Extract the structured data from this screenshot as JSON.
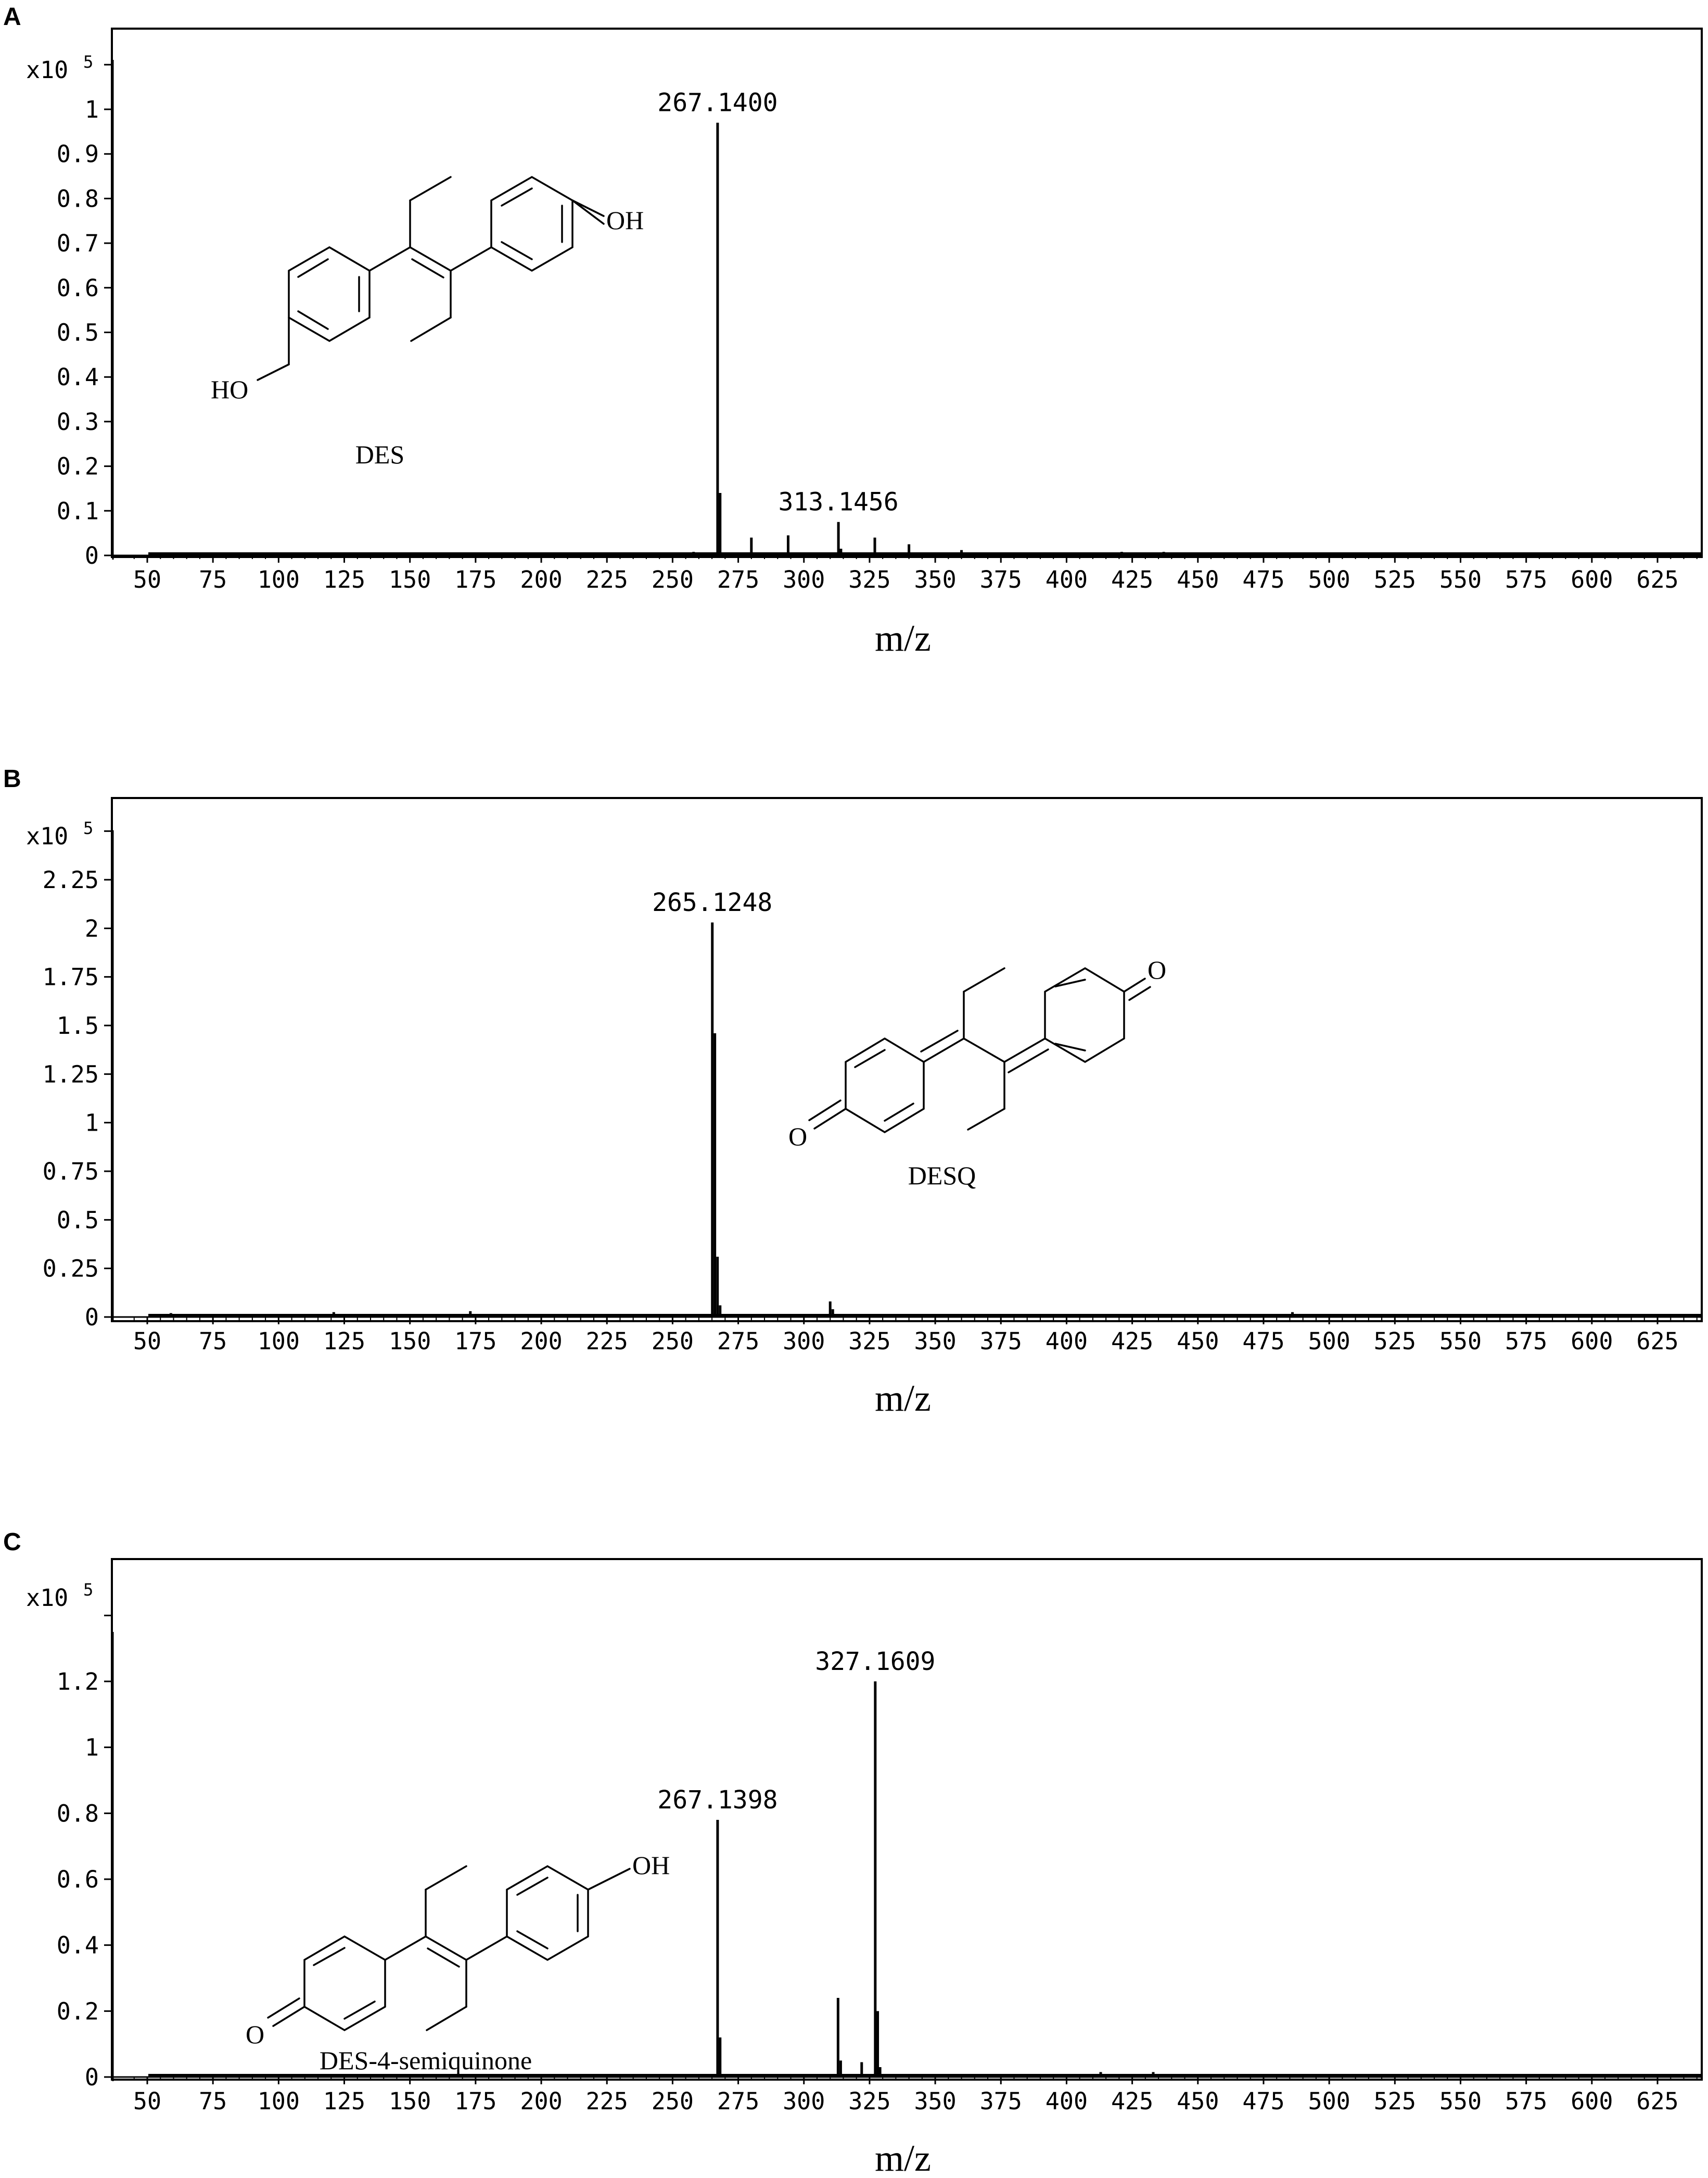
{
  "chart_data": [
    {
      "type": "bar",
      "panel": "A",
      "scale_label": "x10",
      "scale_exponent": "5",
      "xlabel": "m/z",
      "ylabel": "",
      "xlim": [
        45,
        645
      ],
      "ylim": [
        0,
        1.1
      ],
      "xticks": [
        "50",
        "75",
        "100",
        "125",
        "150",
        "175",
        "200",
        "225",
        "250",
        "275",
        "300",
        "325",
        "350",
        "375",
        "400",
        "425",
        "450",
        "475",
        "500",
        "525",
        "550",
        "575",
        "600",
        "625"
      ],
      "yticks": [
        "0",
        "0.1",
        "0.2",
        "0.3",
        "0.4",
        "0.5",
        "0.6",
        "0.7",
        "0.8",
        "0.9",
        "1"
      ],
      "peaks": [
        {
          "mz": 267.14,
          "intensity": 0.97,
          "label": "267.1400"
        },
        {
          "mz": 268.1,
          "intensity": 0.14
        },
        {
          "mz": 280.0,
          "intensity": 0.04
        },
        {
          "mz": 294.0,
          "intensity": 0.045
        },
        {
          "mz": 313.1456,
          "intensity": 0.075,
          "label": "313.1456"
        },
        {
          "mz": 314.1,
          "intensity": 0.015
        },
        {
          "mz": 327.0,
          "intensity": 0.04
        },
        {
          "mz": 340.0,
          "intensity": 0.025
        },
        {
          "mz": 360.0,
          "intensity": 0.012
        },
        {
          "mz": 258.0,
          "intensity": 0.008
        },
        {
          "mz": 244.0,
          "intensity": 0.006
        },
        {
          "mz": 421.0,
          "intensity": 0.008
        },
        {
          "mz": 437.0,
          "intensity": 0.008
        }
      ],
      "structure": {
        "name": "DES",
        "labels": [
          "OH",
          "HO"
        ]
      }
    },
    {
      "type": "bar",
      "panel": "B",
      "scale_label": "x10",
      "scale_exponent": "5",
      "xlabel": "m/z",
      "ylabel": "",
      "xlim": [
        45,
        645
      ],
      "ylim": [
        0,
        2.45
      ],
      "xticks": [
        "50",
        "75",
        "100",
        "125",
        "150",
        "175",
        "200",
        "225",
        "250",
        "275",
        "300",
        "325",
        "350",
        "375",
        "400",
        "425",
        "450",
        "475",
        "500",
        "525",
        "550",
        "575",
        "600",
        "625"
      ],
      "yticks": [
        "0",
        "0.25",
        "0.5",
        "0.75",
        "1",
        "1.25",
        "1.5",
        "1.75",
        "2",
        "2.25"
      ],
      "peaks": [
        {
          "mz": 265.1248,
          "intensity": 2.03,
          "label": "265.1248"
        },
        {
          "mz": 266.1,
          "intensity": 1.46
        },
        {
          "mz": 267.1,
          "intensity": 0.31
        },
        {
          "mz": 268.1,
          "intensity": 0.06
        },
        {
          "mz": 310.0,
          "intensity": 0.08
        },
        {
          "mz": 311.0,
          "intensity": 0.04
        },
        {
          "mz": 59.0,
          "intensity": 0.02
        },
        {
          "mz": 121.0,
          "intensity": 0.025
        },
        {
          "mz": 173.0,
          "intensity": 0.03
        },
        {
          "mz": 486.0,
          "intensity": 0.025
        },
        {
          "mz": 497.0,
          "intensity": 0.015
        },
        {
          "mz": 511.0,
          "intensity": 0.015
        }
      ],
      "structure": {
        "name": "DESQ",
        "labels": [
          "O",
          "O"
        ]
      }
    },
    {
      "type": "bar",
      "panel": "C",
      "scale_label": "x10",
      "scale_exponent": "5",
      "xlabel": "m/z",
      "ylabel": "",
      "xlim": [
        45,
        645
      ],
      "ylim": [
        0,
        1.4
      ],
      "xticks": [
        "50",
        "75",
        "100",
        "125",
        "150",
        "175",
        "200",
        "225",
        "250",
        "275",
        "300",
        "325",
        "350",
        "375",
        "400",
        "425",
        "450",
        "475",
        "500",
        "525",
        "550",
        "575",
        "600",
        "625"
      ],
      "yticks": [
        "0",
        "0.2",
        "0.4",
        "0.6",
        "0.8",
        "1",
        "1.2"
      ],
      "peaks": [
        {
          "mz": 267.1398,
          "intensity": 0.78,
          "label": "267.1398"
        },
        {
          "mz": 268.1,
          "intensity": 0.12
        },
        {
          "mz": 313.0,
          "intensity": 0.24
        },
        {
          "mz": 314.0,
          "intensity": 0.05
        },
        {
          "mz": 322.0,
          "intensity": 0.045
        },
        {
          "mz": 327.1609,
          "intensity": 1.2,
          "label": "327.1609"
        },
        {
          "mz": 328.1,
          "intensity": 0.2
        },
        {
          "mz": 329.0,
          "intensity": 0.03
        },
        {
          "mz": 59.0,
          "intensity": 0.008
        },
        {
          "mz": 413.0,
          "intensity": 0.015
        },
        {
          "mz": 433.0,
          "intensity": 0.015
        },
        {
          "mz": 500.0,
          "intensity": 0.008
        }
      ],
      "structure": {
        "name": "DES-4-semiquinone",
        "labels": [
          "OH",
          "O"
        ]
      }
    }
  ]
}
